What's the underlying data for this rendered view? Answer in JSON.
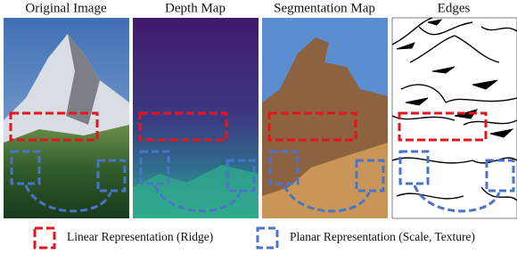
{
  "panels": [
    {
      "title": "Original Image"
    },
    {
      "title": "Depth Map"
    },
    {
      "title": "Segmentation Map"
    },
    {
      "title": "Edges"
    }
  ],
  "legend": {
    "linear": "Linear Representation (Ridge)",
    "planar": "Planar Representation (Scale, Texture)"
  }
}
